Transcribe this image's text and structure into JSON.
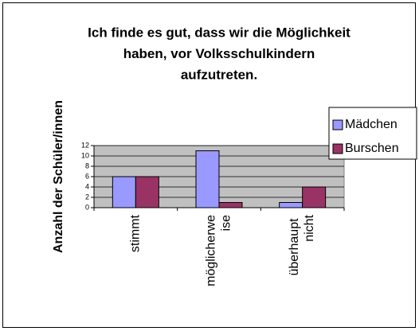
{
  "chart_data": {
    "type": "bar",
    "title_lines": [
      "Ich finde es gut, dass wir die Möglichkeit",
      "haben, vor Volksschulkindern",
      "aufzutreten."
    ],
    "ylabel": "Anzahl der Schüler/innen",
    "categories": [
      "stimmt",
      "möglicherweise",
      "überhaupt nicht"
    ],
    "series": [
      {
        "name": "Mädchen",
        "color": "#9999ff",
        "values": [
          6,
          11,
          1
        ]
      },
      {
        "name": "Burschen",
        "color": "#993366",
        "values": [
          6,
          1,
          4
        ]
      }
    ],
    "ylim": [
      0,
      12
    ],
    "yticks": [
      0,
      2,
      4,
      6,
      8,
      10,
      12
    ],
    "grid": true,
    "legend": "right"
  }
}
